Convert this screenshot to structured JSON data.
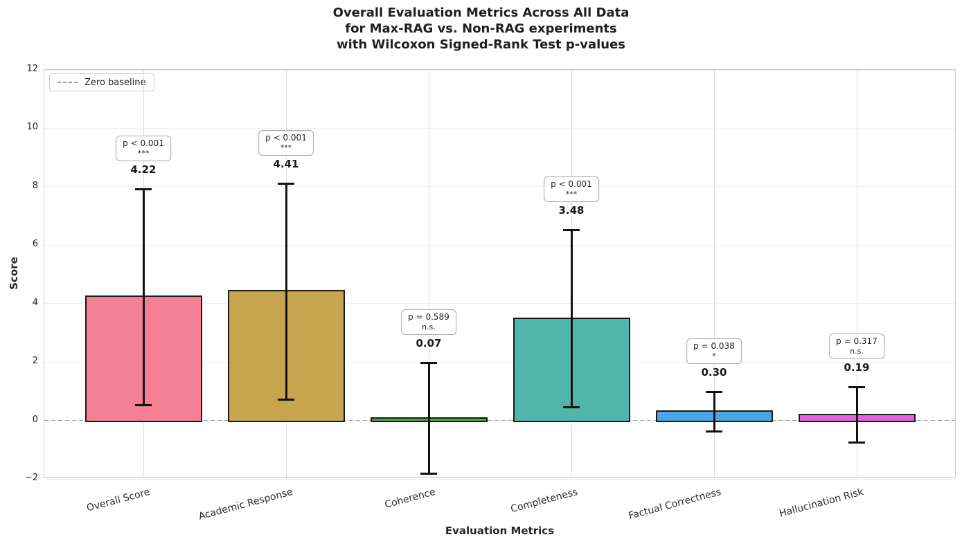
{
  "chart_data": {
    "type": "bar",
    "title": "Overall Evaluation Metrics Across All Data\nfor Max-RAG vs. Non-RAG experiments\nwith Wilcoxon Signed-Rank Test p-values",
    "xlabel": "Evaluation Metrics",
    "ylabel": "Score",
    "ylim": [
      -2,
      12
    ],
    "yticks": [
      -2,
      0,
      2,
      4,
      6,
      8,
      10,
      12
    ],
    "grid": true,
    "legend_label": "Zero baseline",
    "legend_position": "upper left",
    "zero_baseline": 0,
    "categories": [
      "Overall Score",
      "Academic Response",
      "Coherence",
      "Completeness",
      "Factual Correctness",
      "Hallucination Risk"
    ],
    "values": [
      4.22,
      4.41,
      0.07,
      3.48,
      0.3,
      0.19
    ],
    "errors": [
      3.7,
      3.7,
      1.9,
      3.05,
      0.68,
      0.97
    ],
    "p_annotations": [
      {
        "label": "p < 0.001",
        "significance": "***"
      },
      {
        "label": "p < 0.001",
        "significance": "***"
      },
      {
        "label": "p = 0.589",
        "significance": "n.s."
      },
      {
        "label": "p < 0.001",
        "significance": "***"
      },
      {
        "label": "p = 0.038",
        "significance": "*"
      },
      {
        "label": "p = 0.317",
        "significance": "n.s."
      }
    ],
    "bar_colors": [
      "#f57f93",
      "#c7a44e",
      "#4aad35",
      "#50b6ab",
      "#4ba6e3",
      "#e660de"
    ],
    "bar_edge_color": "#1b1b1b",
    "error_bar_color": "#111111",
    "baseline_color": "#9c9c9c"
  }
}
